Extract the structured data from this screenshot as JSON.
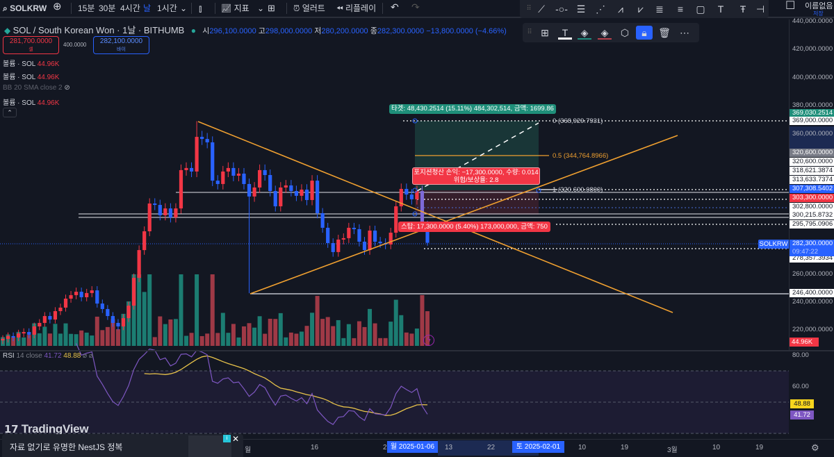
{
  "toolbar": {
    "symbol": "SOLKRW",
    "intervals": [
      "15분",
      "30분",
      "4시간",
      "날",
      "1시간"
    ],
    "active_interval": "날",
    "indicators": "지표",
    "alert": "얼러트",
    "replay": "리플레이",
    "layout_name": "이름없음",
    "save": "저장"
  },
  "legend": {
    "title": "SOL / South Korean Won · 1날 · BITHUMB",
    "o_label": "시",
    "o": "296,100.0000",
    "h_label": "고",
    "h": "298,000.0000",
    "l_label": "저",
    "l": "280,200.0000",
    "c_label": "종",
    "c": "282,300.0000",
    "change": "−13,800.0000 (−4.66%)"
  },
  "trade": {
    "sell_price": "281,700.0000",
    "sell_label": "셀",
    "spread": "400.0000",
    "buy_price": "282,100.0000",
    "buy_label": "바이"
  },
  "indicators": [
    {
      "name": "볼륨 · SOL",
      "value": "44.96K"
    },
    {
      "name": "볼륨 · SOL",
      "value": "44.96K"
    },
    {
      "name": "BB 20 SMA close 2",
      "value": ""
    },
    {
      "name": "볼륨 · SOL",
      "value": "44.96K"
    }
  ],
  "position": {
    "target": "타겟: 48,430.2514 (15.11%) 484,302,514, 금액: 1699.86",
    "close_line1": "포지션청산 손익: −17,300.0000, 수량: 0.014",
    "close_line2": "위험/보상율: 2.8",
    "stop": "스탑: 17,300.0000 (5.40%) 173,000,000, 금액: 750",
    "fib0": "0 (368,929.7931)",
    "fib05": "0.5 (344,764.8966)",
    "fib1": "1 (320,600.0800)"
  },
  "price_axis": [
    {
      "t": "440,000.0000",
      "p": 440000,
      "s": "plain"
    },
    {
      "t": "420,000.0000",
      "p": 420000,
      "s": "plain"
    },
    {
      "t": "400,000.0000",
      "p": 400000,
      "s": "plain"
    },
    {
      "t": "380,000.0000",
      "p": 380000,
      "s": "plain"
    },
    {
      "t": "369,030.2514",
      "p": 374500,
      "s": "green"
    },
    {
      "t": "369,000.0000",
      "p": 369000,
      "s": "white"
    },
    {
      "t": "360,000.0000",
      "p": 360000,
      "s": "plain"
    },
    {
      "t": "320,600.0000",
      "p": 346500,
      "s": "gray"
    },
    {
      "t": "320,600.0000",
      "p": 340000,
      "s": "white"
    },
    {
      "t": "318,621.3874",
      "p": 333600,
      "s": "white"
    },
    {
      "t": "313,633.7374",
      "p": 327200,
      "s": "white"
    },
    {
      "t": "307,308.5402",
      "p": 320800,
      "s": "blue"
    },
    {
      "t": "303,300.0000",
      "p": 314400,
      "s": "red"
    },
    {
      "t": "302,800.0000",
      "p": 308000,
      "s": "white"
    },
    {
      "t": "300,215.8732",
      "p": 302000,
      "s": "white"
    },
    {
      "t": "295,795.0906",
      "p": 295600,
      "s": "white"
    },
    {
      "t": "278,357.3934",
      "p": 271400,
      "s": "white"
    },
    {
      "t": "260,000.0000",
      "p": 260000,
      "s": "plain"
    },
    {
      "t": "246,400.0000",
      "p": 246400,
      "s": "white"
    },
    {
      "t": "240,000.0000",
      "p": 240000,
      "s": "plain"
    },
    {
      "t": "220,000.0000",
      "p": 220000,
      "s": "plain"
    }
  ],
  "last_price": {
    "symbol": "SOLKRW",
    "price": "282,300.0000",
    "countdown": "09:47:22"
  },
  "volume_badge": "44.96K",
  "rsi": {
    "label": "RSI",
    "params": "14 close",
    "value": "41.72",
    "ma_value": "48.88",
    "extra": "⌀ ⌀",
    "axis": [
      "80.00",
      "60.00"
    ]
  },
  "time_axis": {
    "labels": [
      {
        "t": "월",
        "x": 352
      },
      {
        "t": "16",
        "x": 447
      },
      {
        "t": "2",
        "x": 551
      },
      {
        "t": "13",
        "x": 640
      },
      {
        "t": "22",
        "x": 701
      },
      {
        "t": "10",
        "x": 832
      },
      {
        "t": "19",
        "x": 893
      },
      {
        "t": "3월",
        "x": 960
      },
      {
        "t": "10",
        "x": 1025
      },
      {
        "t": "19",
        "x": 1087
      }
    ],
    "cursor1": "월 2025-01-06",
    "cursor2": "토 2025-02-01"
  },
  "branding": "TradingView",
  "ad": {
    "text": "자료 없기로 유명한 NestJS 정복"
  },
  "colors": {
    "up": "#f23645",
    "down": "#2962ff",
    "vol_up": "#1f8f80",
    "vol_down": "#b8404c",
    "trend": "#f0a030",
    "rsi": "#7e57c2",
    "rsi_ma": "#e8c34a"
  },
  "chart_data": {
    "type": "candlestick",
    "closes": [
      213800,
      215800,
      214800,
      217700,
      218700,
      216800,
      222700,
      225200,
      230100,
      227600,
      233600,
      236100,
      242500,
      245000,
      247400,
      243500,
      246500,
      248400,
      239000,
      235100,
      230100,
      225200,
      222700,
      228600,
      237500,
      257300,
      277100,
      290500,
      310300,
      309300,
      301900,
      306800,
      300400,
      306800,
      334100,
      335600,
      333100,
      357800,
      356300,
      353900,
      326600,
      324200,
      333100,
      335600,
      330100,
      331600,
      324200,
      315300,
      321700,
      334100,
      330600,
      319200,
      308300,
      321700,
      323200,
      319200,
      315800,
      320200,
      312800,
      326600,
      303400,
      293000,
      282100,
      275700,
      284600,
      285600,
      293000,
      292000,
      283100,
      277100,
      291000,
      283100,
      282100,
      281100,
      289500,
      308300,
      320700,
      316700,
      313300,
      319200,
      296100,
      282300
    ],
    "overrides": {
      "37": {
        "high": 369000
      },
      "47": {
        "low": 246400
      },
      "81": {
        "open": 296100,
        "high": 298000,
        "low": 280200,
        "close": 282300
      }
    },
    "price_range": [
      220000,
      440000
    ]
  }
}
